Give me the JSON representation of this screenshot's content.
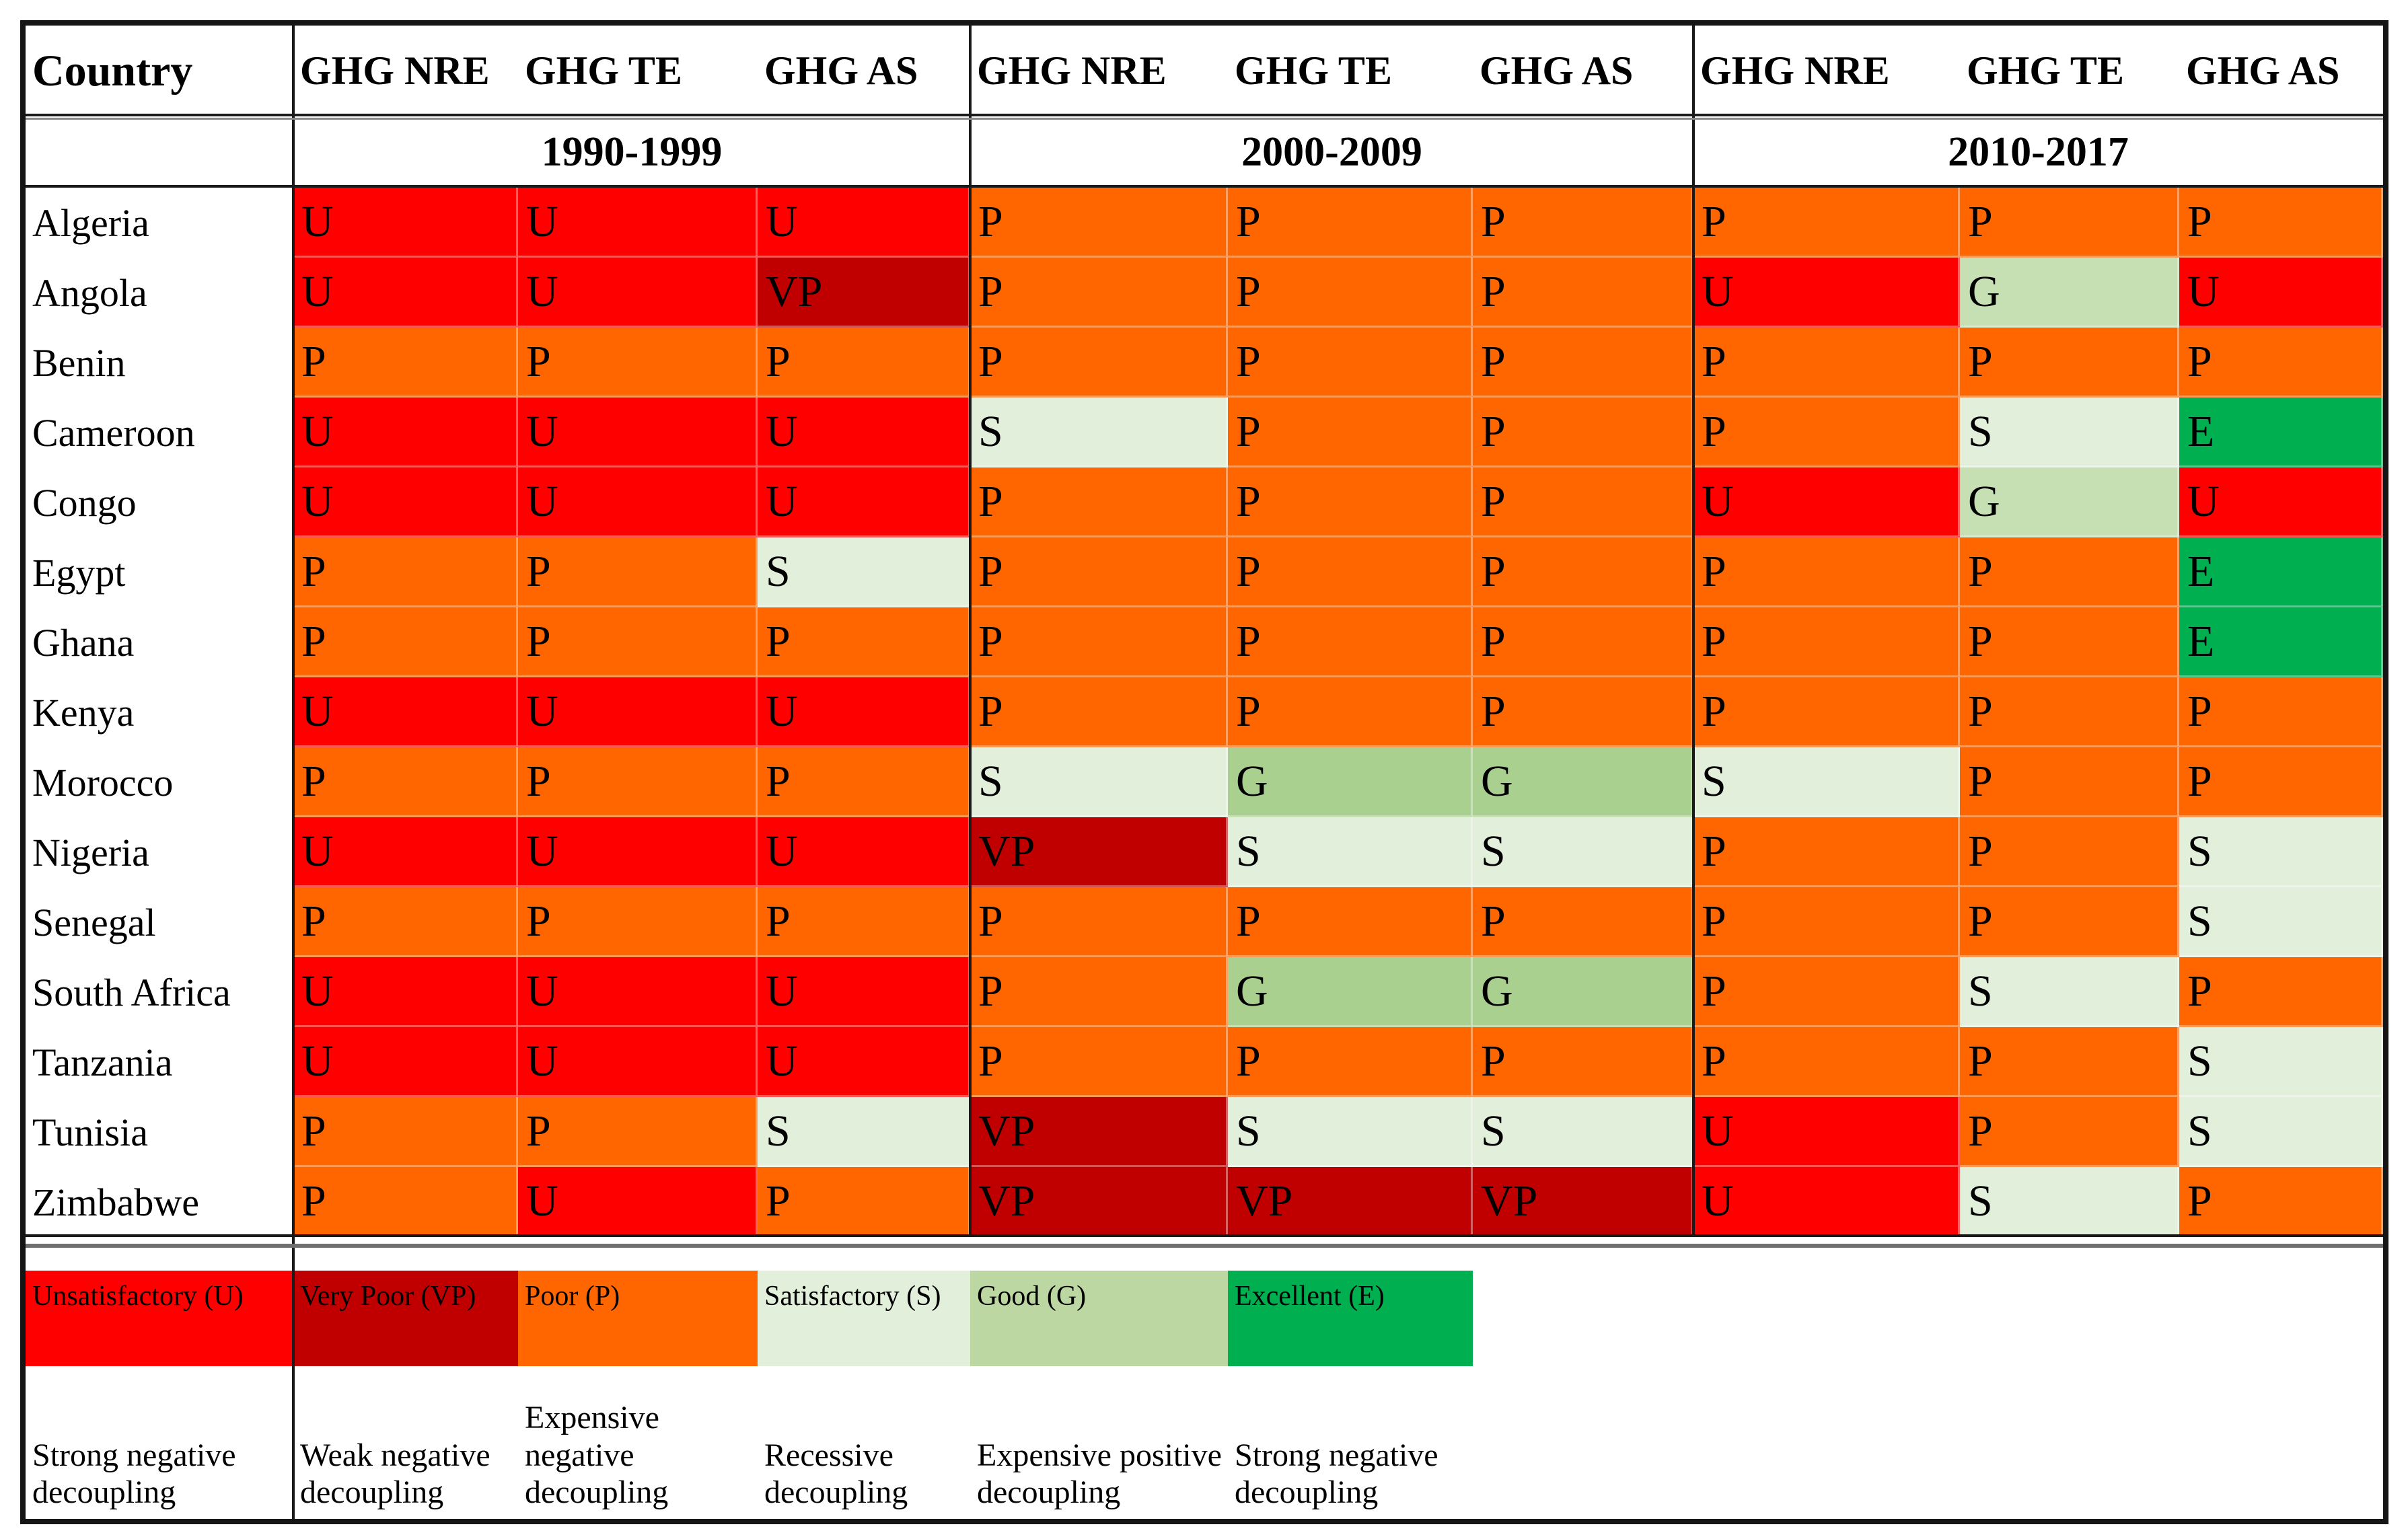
{
  "table": {
    "country_header": "Country",
    "measure_headers": [
      "GHG NRE",
      "GHG TE",
      "GHG AS",
      "GHG NRE",
      "GHG TE",
      "GHG AS",
      "GHG NRE",
      "GHG TE",
      "GHG AS"
    ],
    "periods": [
      "1990-1999",
      "2000-2009",
      "2010-2017"
    ],
    "rows": [
      {
        "country": "Algeria",
        "cells": [
          {
            "code": "U",
            "color": "#FF0000"
          },
          {
            "code": "U",
            "color": "#FF0000"
          },
          {
            "code": "U",
            "color": "#FF0000"
          },
          {
            "code": "P",
            "color": "#FF6600"
          },
          {
            "code": "P",
            "color": "#FF6600"
          },
          {
            "code": "P",
            "color": "#FF6600"
          },
          {
            "code": "P",
            "color": "#FF6600"
          },
          {
            "code": "P",
            "color": "#FF6600"
          },
          {
            "code": "P",
            "color": "#FF6600"
          }
        ]
      },
      {
        "country": "Angola",
        "cells": [
          {
            "code": "U",
            "color": "#FF0000"
          },
          {
            "code": "U",
            "color": "#FF0000"
          },
          {
            "code": "VP",
            "color": "#C00000"
          },
          {
            "code": "P",
            "color": "#FF6600"
          },
          {
            "code": "P",
            "color": "#FF6600"
          },
          {
            "code": "P",
            "color": "#FF6600"
          },
          {
            "code": "U",
            "color": "#FF0000"
          },
          {
            "code": "G",
            "color": "#C6E0B4"
          },
          {
            "code": "U",
            "color": "#FF0000"
          }
        ]
      },
      {
        "country": "Benin",
        "cells": [
          {
            "code": "P",
            "color": "#FF6600"
          },
          {
            "code": "P",
            "color": "#FF6600"
          },
          {
            "code": "P",
            "color": "#FF6600"
          },
          {
            "code": "P",
            "color": "#FF6600"
          },
          {
            "code": "P",
            "color": "#FF6600"
          },
          {
            "code": "P",
            "color": "#FF6600"
          },
          {
            "code": "P",
            "color": "#FF6600"
          },
          {
            "code": "P",
            "color": "#FF6600"
          },
          {
            "code": "P",
            "color": "#FF6600"
          }
        ]
      },
      {
        "country": "Cameroon",
        "cells": [
          {
            "code": "U",
            "color": "#FF0000"
          },
          {
            "code": "U",
            "color": "#FF0000"
          },
          {
            "code": "U",
            "color": "#FF0000"
          },
          {
            "code": "S",
            "color": "#E2EFDA"
          },
          {
            "code": "P",
            "color": "#FF6600"
          },
          {
            "code": "P",
            "color": "#FF6600"
          },
          {
            "code": "P",
            "color": "#FF6600"
          },
          {
            "code": "S",
            "color": "#E2EFDA"
          },
          {
            "code": "E",
            "color": "#00B050"
          }
        ]
      },
      {
        "country": "Congo",
        "cells": [
          {
            "code": "U",
            "color": "#FF0000"
          },
          {
            "code": "U",
            "color": "#FF0000"
          },
          {
            "code": "U",
            "color": "#FF0000"
          },
          {
            "code": "P",
            "color": "#FF6600"
          },
          {
            "code": "P",
            "color": "#FF6600"
          },
          {
            "code": "P",
            "color": "#FF6600"
          },
          {
            "code": "U",
            "color": "#FF0000"
          },
          {
            "code": "G",
            "color": "#C6E0B4"
          },
          {
            "code": "U",
            "color": "#FF0000"
          }
        ]
      },
      {
        "country": "Egypt",
        "cells": [
          {
            "code": "P",
            "color": "#FF6600"
          },
          {
            "code": "P",
            "color": "#FF6600"
          },
          {
            "code": "S",
            "color": "#E2EFDA"
          },
          {
            "code": "P",
            "color": "#FF6600"
          },
          {
            "code": "P",
            "color": "#FF6600"
          },
          {
            "code": "P",
            "color": "#FF6600"
          },
          {
            "code": "P",
            "color": "#FF6600"
          },
          {
            "code": "P",
            "color": "#FF6600"
          },
          {
            "code": "E",
            "color": "#00B050"
          }
        ]
      },
      {
        "country": "Ghana",
        "cells": [
          {
            "code": "P",
            "color": "#FF6600"
          },
          {
            "code": "P",
            "color": "#FF6600"
          },
          {
            "code": "P",
            "color": "#FF6600"
          },
          {
            "code": "P",
            "color": "#FF6600"
          },
          {
            "code": "P",
            "color": "#FF6600"
          },
          {
            "code": "P",
            "color": "#FF6600"
          },
          {
            "code": "P",
            "color": "#FF6600"
          },
          {
            "code": "P",
            "color": "#FF6600"
          },
          {
            "code": "E",
            "color": "#00B050"
          }
        ]
      },
      {
        "country": "Kenya",
        "cells": [
          {
            "code": "U",
            "color": "#FF0000"
          },
          {
            "code": "U",
            "color": "#FF0000"
          },
          {
            "code": "U",
            "color": "#FF0000"
          },
          {
            "code": "P",
            "color": "#FF6600"
          },
          {
            "code": "P",
            "color": "#FF6600"
          },
          {
            "code": "P",
            "color": "#FF6600"
          },
          {
            "code": "P",
            "color": "#FF6600"
          },
          {
            "code": "P",
            "color": "#FF6600"
          },
          {
            "code": "P",
            "color": "#FF6600"
          }
        ]
      },
      {
        "country": "Morocco",
        "cells": [
          {
            "code": "P",
            "color": "#FF6600"
          },
          {
            "code": "P",
            "color": "#FF6600"
          },
          {
            "code": "P",
            "color": "#FF6600"
          },
          {
            "code": "S",
            "color": "#E2EFDA"
          },
          {
            "code": "G",
            "color": "#A9D08E"
          },
          {
            "code": "G",
            "color": "#A9D08E"
          },
          {
            "code": "S",
            "color": "#E2EFDA"
          },
          {
            "code": "P",
            "color": "#FF6600"
          },
          {
            "code": "P",
            "color": "#FF6600"
          }
        ]
      },
      {
        "country": "Nigeria",
        "cells": [
          {
            "code": "U",
            "color": "#FF0000"
          },
          {
            "code": "U",
            "color": "#FF0000"
          },
          {
            "code": "U",
            "color": "#FF0000"
          },
          {
            "code": "VP",
            "color": "#C00000"
          },
          {
            "code": "S",
            "color": "#E2EFDA"
          },
          {
            "code": "S",
            "color": "#E2EFDA"
          },
          {
            "code": "P",
            "color": "#FF6600"
          },
          {
            "code": "P",
            "color": "#FF6600"
          },
          {
            "code": "S",
            "color": "#E2EFDA"
          }
        ]
      },
      {
        "country": "Senegal",
        "cells": [
          {
            "code": "P",
            "color": "#FF6600"
          },
          {
            "code": "P",
            "color": "#FF6600"
          },
          {
            "code": "P",
            "color": "#FF6600"
          },
          {
            "code": "P",
            "color": "#FF6600"
          },
          {
            "code": "P",
            "color": "#FF6600"
          },
          {
            "code": "P",
            "color": "#FF6600"
          },
          {
            "code": "P",
            "color": "#FF6600"
          },
          {
            "code": "P",
            "color": "#FF6600"
          },
          {
            "code": "S",
            "color": "#E2EFDA"
          }
        ]
      },
      {
        "country": "South Africa",
        "cells": [
          {
            "code": "U",
            "color": "#FF0000"
          },
          {
            "code": "U",
            "color": "#FF0000"
          },
          {
            "code": "U",
            "color": "#FF0000"
          },
          {
            "code": "P",
            "color": "#FF6600"
          },
          {
            "code": "G",
            "color": "#A9D08E"
          },
          {
            "code": "G",
            "color": "#A9D08E"
          },
          {
            "code": "P",
            "color": "#FF6600"
          },
          {
            "code": "S",
            "color": "#E2EFDA"
          },
          {
            "code": "P",
            "color": "#FF6600"
          }
        ]
      },
      {
        "country": "Tanzania",
        "cells": [
          {
            "code": "U",
            "color": "#FF0000"
          },
          {
            "code": "U",
            "color": "#FF0000"
          },
          {
            "code": "U",
            "color": "#FF0000"
          },
          {
            "code": "P",
            "color": "#FF6600"
          },
          {
            "code": "P",
            "color": "#FF6600"
          },
          {
            "code": "P",
            "color": "#FF6600"
          },
          {
            "code": "P",
            "color": "#FF6600"
          },
          {
            "code": "P",
            "color": "#FF6600"
          },
          {
            "code": "S",
            "color": "#E2EFDA"
          }
        ]
      },
      {
        "country": "Tunisia",
        "cells": [
          {
            "code": "P",
            "color": "#FF6600"
          },
          {
            "code": "P",
            "color": "#FF6600"
          },
          {
            "code": "S",
            "color": "#E2EFDA"
          },
          {
            "code": "VP",
            "color": "#C00000"
          },
          {
            "code": "S",
            "color": "#E2EFDA"
          },
          {
            "code": "S",
            "color": "#E2EFDA"
          },
          {
            "code": "U",
            "color": "#FF0000"
          },
          {
            "code": "P",
            "color": "#FF6600"
          },
          {
            "code": "S",
            "color": "#E2EFDA"
          }
        ]
      },
      {
        "country": "Zimbabwe",
        "cells": [
          {
            "code": "P",
            "color": "#FF6600"
          },
          {
            "code": "U",
            "color": "#FF0000"
          },
          {
            "code": "P",
            "color": "#FF6600"
          },
          {
            "code": "VP",
            "color": "#C00000"
          },
          {
            "code": "VP",
            "color": "#C00000"
          },
          {
            "code": "VP",
            "color": "#C00000"
          },
          {
            "code": "U",
            "color": "#FF0000"
          },
          {
            "code": "S",
            "color": "#E2EFDA"
          },
          {
            "code": "P",
            "color": "#FF6600"
          }
        ]
      }
    ]
  },
  "legend": {
    "items": [
      {
        "label": "Unsatisfactory (U)",
        "code": "U",
        "color": "#FF0000"
      },
      {
        "label": "Very Poor (VP)",
        "code": "VP",
        "color": "#C00000"
      },
      {
        "label": "Poor (P)",
        "code": "P",
        "color": "#FF6600"
      },
      {
        "label": "Satisfactory (S)",
        "code": "S",
        "color": "#E2EFDA"
      },
      {
        "label": "Good (G)",
        "code": "G",
        "color": "#BDD7A3"
      },
      {
        "label": "Excellent (E)",
        "code": "E",
        "color": "#00B050"
      }
    ],
    "definitions": [
      "Strong negative decoupling",
      "Weak negative decoupling",
      "Expensive negative decoupling",
      "Recessive decoupling",
      "Expensive positive decoupling",
      "Strong negative decoupling"
    ]
  }
}
